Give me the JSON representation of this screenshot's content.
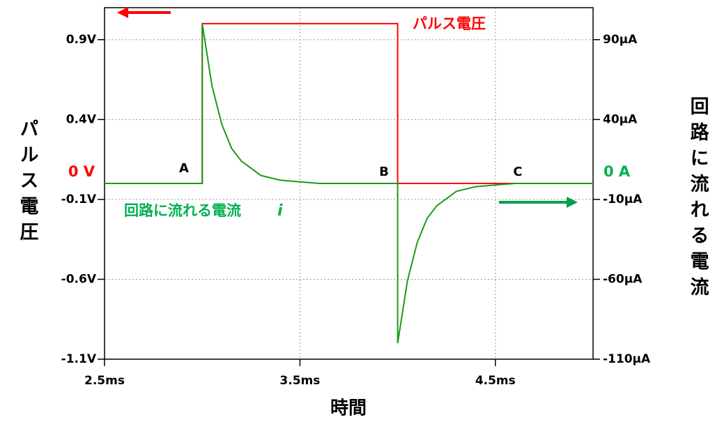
{
  "chart_data": {
    "type": "line",
    "xlabel": "時間",
    "ylabel": "パルス電圧",
    "y2label": "回路に流れる電流",
    "x": [
      2.5,
      3.0,
      3.0,
      3.05,
      3.1,
      3.15,
      3.2,
      3.3,
      3.4,
      3.5,
      3.6,
      3.8,
      4.0,
      4.0,
      4.05,
      4.1,
      4.15,
      4.2,
      4.3,
      4.4,
      4.5,
      4.6,
      4.8,
      5.0
    ],
    "series": [
      {
        "name": "パルス電圧",
        "color": "#ff0000",
        "axis": "y",
        "values": [
          0,
          0,
          1,
          1,
          1,
          1,
          1,
          1,
          1,
          1,
          1,
          1,
          1,
          0,
          0,
          0,
          0,
          0,
          0,
          0,
          0,
          0,
          0,
          0
        ]
      },
      {
        "name": "回路に流れる電流",
        "color": "#1a9a1a",
        "axis": "y2",
        "values": [
          0,
          0,
          100,
          61,
          37,
          22,
          14,
          5,
          2,
          1,
          0,
          0,
          0,
          -100,
          -61,
          -37,
          -22,
          -14,
          -5,
          -2,
          -1,
          0,
          0,
          0
        ]
      }
    ],
    "xlim": [
      2.5,
      5.0
    ],
    "xticks": [
      {
        "value": 2.5,
        "label": "2.5ms"
      },
      {
        "value": 3.5,
        "label": "3.5ms"
      },
      {
        "value": 4.5,
        "label": "4.5ms"
      }
    ],
    "ylim": [
      -1.1,
      1.1
    ],
    "yticks": [
      {
        "value": 0.9,
        "label": "0.9V"
      },
      {
        "value": 0.4,
        "label": "0.4V"
      },
      {
        "value": -0.1,
        "label": "-0.1V"
      },
      {
        "value": -0.6,
        "label": "-0.6V"
      },
      {
        "value": -1.1,
        "label": "-1.1V"
      }
    ],
    "y2lim": [
      -110,
      110
    ],
    "y2ticks": [
      {
        "value": 90,
        "label": "90µA"
      },
      {
        "value": 40,
        "label": "40µA"
      },
      {
        "value": -10,
        "label": "-10µA"
      },
      {
        "value": -60,
        "label": "-60µA"
      },
      {
        "value": -110,
        "label": "-110µA"
      }
    ],
    "grid": true,
    "zero_labels": [
      "0 V",
      "0 A"
    ],
    "point_labels": [
      "A",
      "B",
      "C"
    ],
    "current_symbol": "i"
  }
}
